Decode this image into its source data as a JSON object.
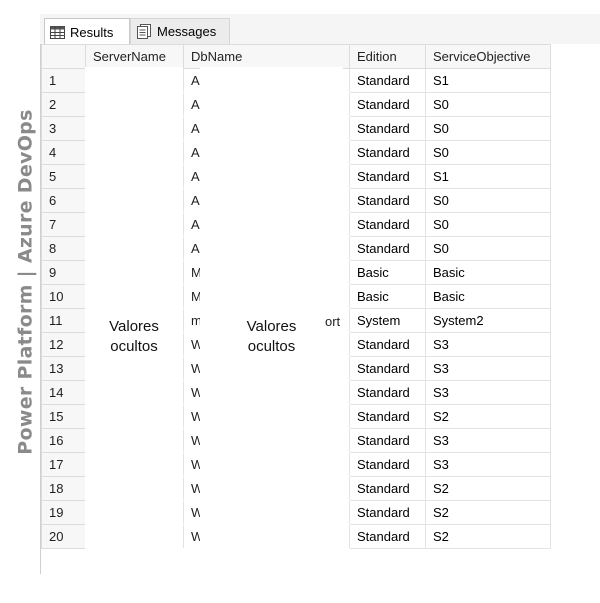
{
  "watermark": "Power Platform | Azure DevOps",
  "tabs": {
    "results": "Results",
    "messages": "Messages"
  },
  "columns": [
    "ServerName",
    "DbName",
    "Edition",
    "ServiceObjective"
  ],
  "masks": {
    "server": [
      "Valores",
      "ocultos"
    ],
    "db": [
      "Valores",
      "ocultos"
    ]
  },
  "row10_db_suffix": "ort",
  "rows": [
    {
      "n": "1",
      "db": "A",
      "edition": "Standard",
      "objective": "S1"
    },
    {
      "n": "2",
      "db": "A",
      "edition": "Standard",
      "objective": "S0"
    },
    {
      "n": "3",
      "db": "A",
      "edition": "Standard",
      "objective": "S0"
    },
    {
      "n": "4",
      "db": "A",
      "edition": "Standard",
      "objective": "S0"
    },
    {
      "n": "5",
      "db": "A",
      "edition": "Standard",
      "objective": "S1"
    },
    {
      "n": "6",
      "db": "A",
      "edition": "Standard",
      "objective": "S0"
    },
    {
      "n": "7",
      "db": "A",
      "edition": "Standard",
      "objective": "S0"
    },
    {
      "n": "8",
      "db": "A",
      "edition": "Standard",
      "objective": "S0"
    },
    {
      "n": "9",
      "db": "M",
      "edition": "Basic",
      "objective": "Basic"
    },
    {
      "n": "10",
      "db": "M",
      "edition": "Basic",
      "objective": "Basic"
    },
    {
      "n": "11",
      "db": "m",
      "edition": "System",
      "objective": "System2"
    },
    {
      "n": "12",
      "db": "W",
      "edition": "Standard",
      "objective": "S3"
    },
    {
      "n": "13",
      "db": "W",
      "edition": "Standard",
      "objective": "S3"
    },
    {
      "n": "14",
      "db": "W",
      "edition": "Standard",
      "objective": "S3"
    },
    {
      "n": "15",
      "db": "W",
      "edition": "Standard",
      "objective": "S2"
    },
    {
      "n": "16",
      "db": "W",
      "edition": "Standard",
      "objective": "S3"
    },
    {
      "n": "17",
      "db": "W",
      "edition": "Standard",
      "objective": "S3"
    },
    {
      "n": "18",
      "db": "W",
      "edition": "Standard",
      "objective": "S2"
    },
    {
      "n": "19",
      "db": "W",
      "edition": "Standard",
      "objective": "S2"
    },
    {
      "n": "20",
      "db": "W",
      "edition": "Standard",
      "objective": "S2"
    }
  ]
}
